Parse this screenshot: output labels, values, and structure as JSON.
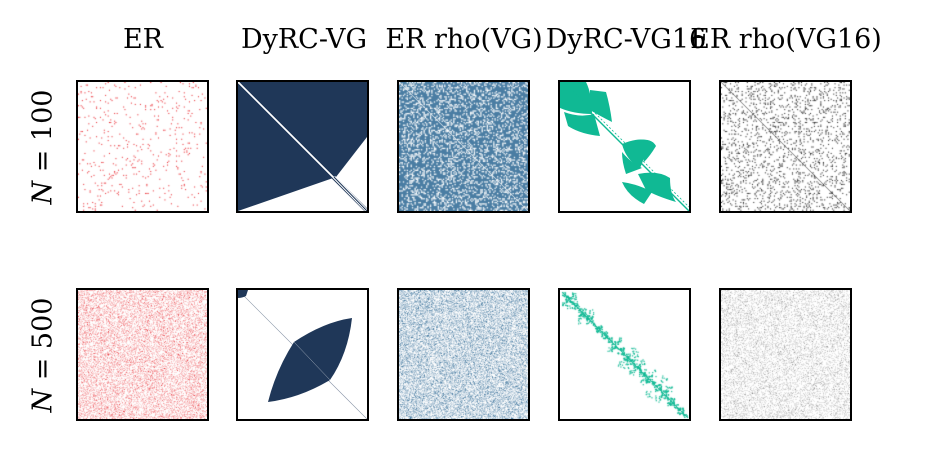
{
  "columns": [
    {
      "title": "ER",
      "color": "#e8262d"
    },
    {
      "title": "DyRC-VG",
      "color": "#1f3758"
    },
    {
      "title": "ER rho(VG)",
      "color": "#4a7da3"
    },
    {
      "title": "DyRC-VG16",
      "color": "#10b994"
    },
    {
      "title": "ER rho(VG16)",
      "color": "#222222"
    }
  ],
  "rows": [
    {
      "label_var": "N",
      "label_rest": " = 100"
    },
    {
      "label_var": "N",
      "label_rest": " = 500"
    }
  ]
}
